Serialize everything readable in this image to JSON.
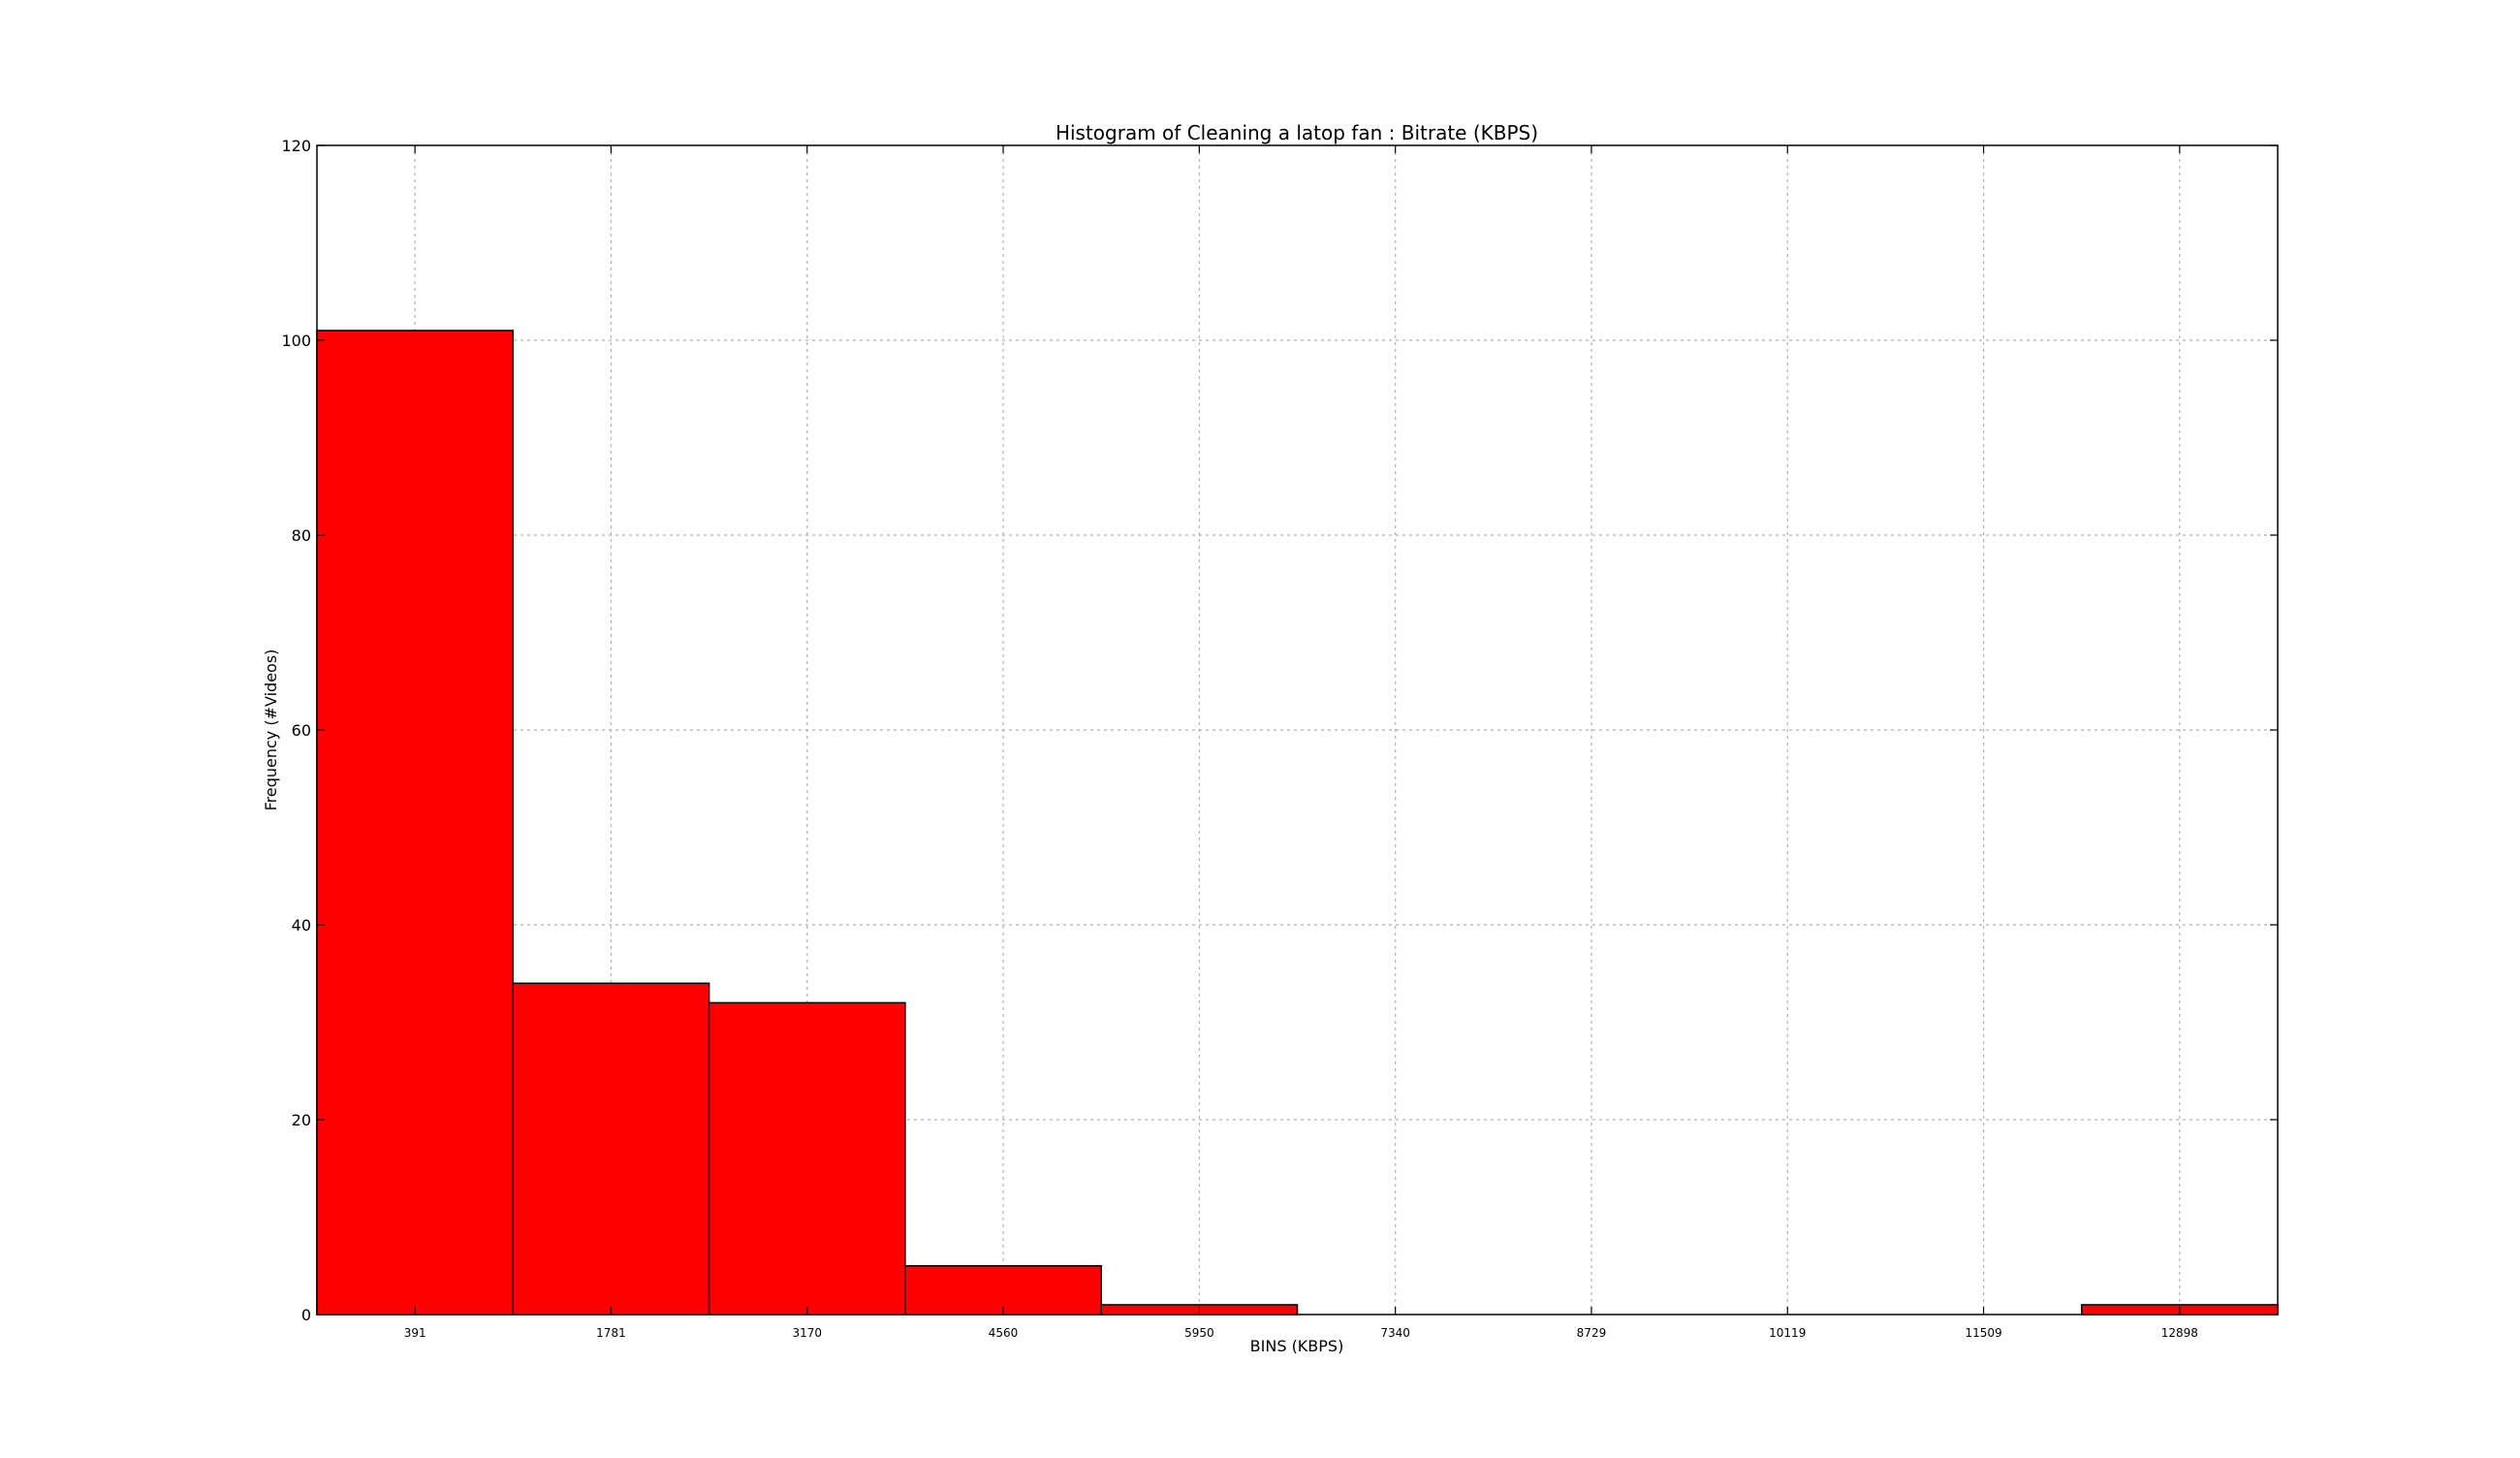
{
  "chart_data": {
    "type": "bar",
    "title": "Histogram of Cleaning a latop fan :  Bitrate (KBPS)",
    "xlabel": "BINS (KBPS)",
    "ylabel": "Frequency (#Videos)",
    "categories": [
      "391",
      "1781",
      "3170",
      "4560",
      "5950",
      "7340",
      "8729",
      "10119",
      "11509",
      "12898"
    ],
    "values": [
      101,
      34,
      32,
      5,
      1,
      0,
      0,
      0,
      0,
      1
    ],
    "ylim": [
      0,
      120
    ],
    "yticks": [
      0,
      20,
      40,
      60,
      80,
      100,
      120
    ],
    "grid": true,
    "colors": {
      "bar_fill": "#ff0000",
      "bar_edge": "#000000",
      "grid": "#b0b0b0",
      "axes": "#000000"
    }
  }
}
